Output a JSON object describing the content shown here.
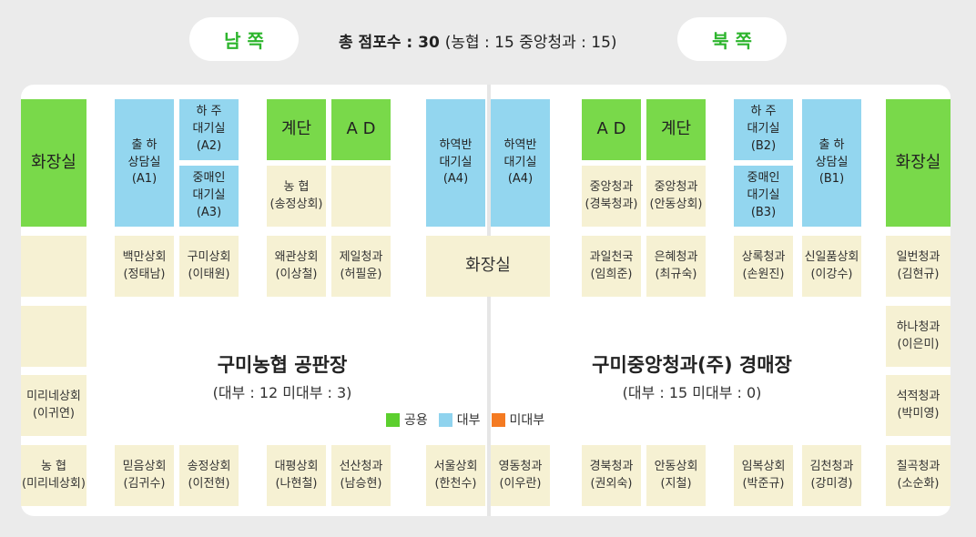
{
  "header": {
    "south": "남 쪽",
    "north": "북 쪽",
    "score_main": "총 점포수 : 30",
    "score_sub": "(농협 : 15 중앙청과 : 15)"
  },
  "halls": {
    "left": {
      "title": "구미농협 공판장",
      "subtitle": "(대부 : 12  미대부 : 3)"
    },
    "right": {
      "title": "구미중앙청과(주) 경매장",
      "subtitle": "(대부 : 15  미대부 : 0)"
    }
  },
  "legend": [
    {
      "label": "공용",
      "color": "#5ccf2e"
    },
    {
      "label": "대부",
      "color": "#8fd3ee"
    },
    {
      "label": "미대부",
      "color": "#f47a22"
    }
  ],
  "colors": {
    "common": "#79d94a",
    "leased": "#93d6ef",
    "store": "#f6f1d3",
    "accent": "#2db52d"
  },
  "cells": {
    "toilet_left": "화장실",
    "consult_a1": "출 하\n상담실\n(A1)",
    "wait_a2": "하 주\n대기실\n(A2)",
    "wait_a3": "중매인\n대기실\n(A3)",
    "stairs_left": "계단",
    "ad_left": "A D",
    "nh_songjeong": "농 협\n(송정상회)",
    "wait_a4_1": "하역반\n대기실\n(A4)",
    "wait_a4_2": "하역반\n대기실\n(A4)",
    "ad_right": "A D",
    "stairs_right": "계단",
    "jungang_gyeongbuk": "중앙청과\n(경북청과)",
    "jungang_andong": "중앙청과\n(안동상회)",
    "wait_b2": "하 주\n대기실\n(B2)",
    "wait_b3": "중매인\n대기실\n(B3)",
    "consult_b1": "출 하\n상담실\n(B1)",
    "toilet_right": "화장실",
    "baekman": "백만상회\n(정태남)",
    "gumi_sanghoe": "구미상회\n(이태원)",
    "waegwan": "왜관상회\n(이상철)",
    "jeil": "제일청과\n(허필윤)",
    "toilet_center": "화장실",
    "gwail": "과일천국\n(임희준)",
    "eunhye": "은혜청과\n(최규숙)",
    "sangrok": "상록청과\n(손원진)",
    "sinil": "신일품상회\n(이강수)",
    "ilbeon": "일번청과\n(김현규)",
    "hana": "하나청과\n(이은미)",
    "mirine": "미리네상회\n(이귀연)",
    "seokjeok": "석적청과\n(박미영)",
    "nh_mirine": "농 협\n(미리네상회)",
    "mideum": "믿음상회\n(김귀수)",
    "songjeong": "송정상회\n(이전현)",
    "daepyeong": "대평상회\n(나현철)",
    "seonsan": "선산청과\n(남승현)",
    "seoul": "서울상회\n(한천수)",
    "yeongdong": "영동청과\n(이우란)",
    "gyeongbuk": "경북청과\n(권외숙)",
    "andong": "안동상회\n(지철)",
    "imbok": "임복상회\n(박준규)",
    "gimcheon": "김천청과\n(강미경)",
    "chilgok": "칠곡청과\n(소순화)"
  }
}
